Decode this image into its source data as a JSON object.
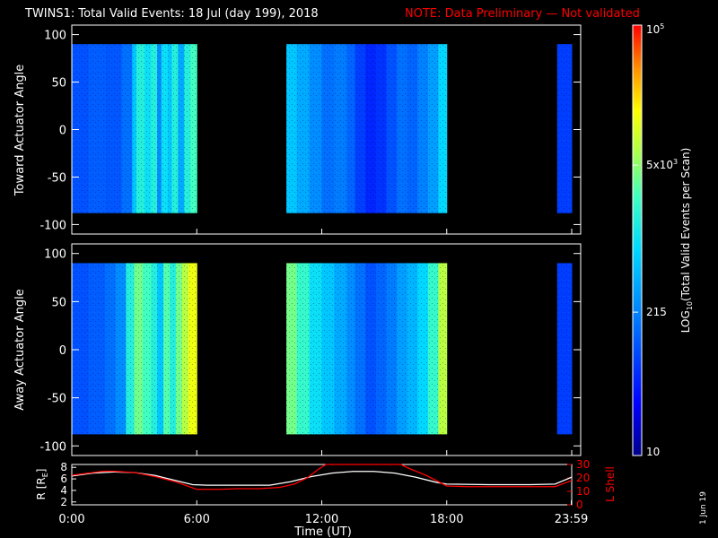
{
  "title": "TWINS1: Total Valid Events: 18 Jul (day 199), 2018",
  "note": "NOTE: Data Preliminary — Not validated",
  "stamp": "1 Jun 19",
  "colors": {
    "note": "#ff0000",
    "r_line": "#ffffff",
    "l_line": "#ff0000"
  },
  "chart_data": [
    {
      "type": "heatmap",
      "panel": "toward",
      "ylabel": "Toward Actuator Angle",
      "yticks": [
        "100",
        "50",
        "0",
        "-50",
        "-100"
      ],
      "ylim": [
        -110,
        110
      ],
      "xlim_hours": [
        0,
        24
      ],
      "data_angle_range": [
        -88,
        90
      ],
      "data_segments_hours": [
        [
          0.0,
          6.0
        ],
        [
          10.3,
          18.0
        ],
        [
          23.3,
          24.0
        ]
      ],
      "column_levels": [
        {
          "h": 0.0,
          "v": 0.25
        },
        {
          "h": 0.8,
          "v": 0.27
        },
        {
          "h": 1.6,
          "v": 0.26
        },
        {
          "h": 2.4,
          "v": 0.3
        },
        {
          "h": 2.9,
          "v": 0.45
        },
        {
          "h": 3.1,
          "v": 0.55
        },
        {
          "h": 3.5,
          "v": 0.5
        },
        {
          "h": 3.8,
          "v": 0.55
        },
        {
          "h": 4.1,
          "v": 0.35
        },
        {
          "h": 4.3,
          "v": 0.5
        },
        {
          "h": 4.6,
          "v": 0.45
        },
        {
          "h": 4.8,
          "v": 0.55
        },
        {
          "h": 5.1,
          "v": 0.4
        },
        {
          "h": 5.4,
          "v": 0.55
        },
        {
          "h": 5.7,
          "v": 0.6
        },
        {
          "h": 10.3,
          "v": 0.45
        },
        {
          "h": 10.8,
          "v": 0.4
        },
        {
          "h": 11.4,
          "v": 0.35
        },
        {
          "h": 12.0,
          "v": 0.3
        },
        {
          "h": 12.6,
          "v": 0.32
        },
        {
          "h": 13.2,
          "v": 0.28
        },
        {
          "h": 13.6,
          "v": 0.22
        },
        {
          "h": 14.1,
          "v": 0.18
        },
        {
          "h": 14.6,
          "v": 0.2
        },
        {
          "h": 15.1,
          "v": 0.25
        },
        {
          "h": 15.6,
          "v": 0.3
        },
        {
          "h": 16.1,
          "v": 0.28
        },
        {
          "h": 16.6,
          "v": 0.33
        },
        {
          "h": 17.1,
          "v": 0.38
        },
        {
          "h": 17.6,
          "v": 0.48
        },
        {
          "h": 23.3,
          "v": 0.22
        }
      ]
    },
    {
      "type": "heatmap",
      "panel": "away",
      "ylabel": "Away Actuator Angle",
      "yticks": [
        "100",
        "50",
        "0",
        "-50",
        "-100"
      ],
      "ylim": [
        -110,
        110
      ],
      "xlim_hours": [
        0,
        24
      ],
      "data_angle_range": [
        -88,
        90
      ],
      "data_segments_hours": [
        [
          0.0,
          6.0
        ],
        [
          10.3,
          18.0
        ],
        [
          23.3,
          24.0
        ]
      ],
      "column_levels": [
        {
          "h": 0.0,
          "v": 0.25
        },
        {
          "h": 0.8,
          "v": 0.27
        },
        {
          "h": 1.6,
          "v": 0.3
        },
        {
          "h": 2.1,
          "v": 0.35
        },
        {
          "h": 2.6,
          "v": 0.55
        },
        {
          "h": 3.0,
          "v": 0.65
        },
        {
          "h": 3.4,
          "v": 0.6
        },
        {
          "h": 3.8,
          "v": 0.55
        },
        {
          "h": 4.1,
          "v": 0.45
        },
        {
          "h": 4.4,
          "v": 0.62
        },
        {
          "h": 4.7,
          "v": 0.55
        },
        {
          "h": 5.0,
          "v": 0.65
        },
        {
          "h": 5.3,
          "v": 0.72
        },
        {
          "h": 5.6,
          "v": 0.78
        },
        {
          "h": 10.3,
          "v": 0.65
        },
        {
          "h": 10.8,
          "v": 0.58
        },
        {
          "h": 11.4,
          "v": 0.5
        },
        {
          "h": 12.0,
          "v": 0.45
        },
        {
          "h": 12.6,
          "v": 0.4
        },
        {
          "h": 13.2,
          "v": 0.35
        },
        {
          "h": 13.6,
          "v": 0.3
        },
        {
          "h": 14.1,
          "v": 0.25
        },
        {
          "h": 14.6,
          "v": 0.28
        },
        {
          "h": 15.1,
          "v": 0.32
        },
        {
          "h": 15.6,
          "v": 0.38
        },
        {
          "h": 16.1,
          "v": 0.42
        },
        {
          "h": 16.6,
          "v": 0.48
        },
        {
          "h": 17.1,
          "v": 0.58
        },
        {
          "h": 17.6,
          "v": 0.72
        },
        {
          "h": 23.3,
          "v": 0.22
        }
      ]
    },
    {
      "type": "line",
      "panel": "orbit",
      "ylabel_left": "R [R",
      "ylabel_left_sub": "E",
      "ylabel_left_end": "]",
      "ylabel_right": "L Shell",
      "yticks_left": [
        "8",
        "6",
        "4",
        "2"
      ],
      "yticks_right": [
        "30",
        "20",
        "10",
        "0"
      ],
      "ylim_left": [
        1.5,
        8.5
      ],
      "ylim_right": [
        0,
        30
      ],
      "xlabel": "Time (UT)",
      "xticks": [
        "0:00",
        "6:00",
        "12:00",
        "18:00",
        "23:59"
      ],
      "xtick_hours": [
        0,
        6,
        12,
        18,
        23.98
      ],
      "series": [
        {
          "axis": "left",
          "x_hours": [
            0,
            1,
            2,
            3,
            4,
            5,
            5.8,
            6.5,
            8,
            9.5,
            10.5,
            11.5,
            12.5,
            13.5,
            14.5,
            15.5,
            16.5,
            17.5,
            18,
            20,
            22,
            23.2,
            24
          ],
          "y": [
            6.5,
            7.0,
            7.2,
            7.1,
            6.6,
            5.7,
            5.0,
            4.9,
            4.9,
            4.9,
            5.5,
            6.4,
            7.0,
            7.3,
            7.3,
            7.0,
            6.3,
            5.4,
            5.1,
            5.0,
            5.0,
            5.1,
            6.3
          ]
        },
        {
          "axis": "right",
          "x_hours": [
            0,
            1,
            1.5,
            2,
            3,
            4,
            5,
            6,
            7,
            8,
            9,
            10,
            10.7,
            11.3,
            11.8,
            12.2,
            15.8,
            16.2,
            17,
            18,
            19,
            20,
            22,
            23.2,
            24
          ],
          "y": [
            22,
            24,
            25,
            25,
            24,
            21,
            17,
            11.5,
            11.5,
            12,
            12,
            13,
            15.5,
            20,
            26,
            30,
            30,
            27,
            22,
            14,
            13.5,
            13.5,
            13.5,
            13.5,
            18
          ]
        }
      ]
    },
    {
      "type": "colorbar",
      "label_pre": "LOG",
      "label_sub": "10",
      "label_post": "(Total Valid Events per Scan)",
      "scale": "log",
      "range": [
        10,
        100000
      ],
      "ticks": [
        {
          "value": 100000,
          "base": "10",
          "sup": "5",
          "pre": ""
        },
        {
          "value": 5000,
          "base": "5x10",
          "sup": "3",
          "pre": ""
        },
        {
          "value": 215,
          "base": "215",
          "sup": "",
          "pre": ""
        },
        {
          "value": 10,
          "base": "10",
          "sup": "",
          "pre": ""
        }
      ]
    }
  ]
}
